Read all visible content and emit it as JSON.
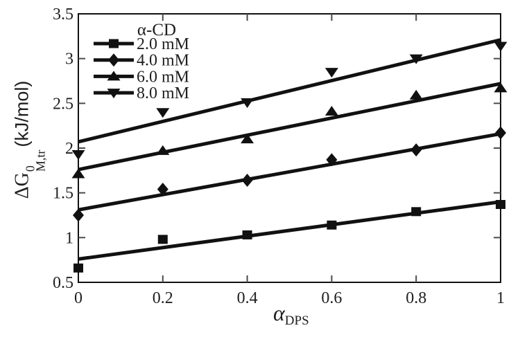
{
  "figure": {
    "background": "#ffffff",
    "ink_color": "#111111",
    "tick_color": "#4a4a4a",
    "text_color": "#1f1f1f"
  },
  "chart_data": {
    "type": "line",
    "title": "",
    "xlabel": "αDPS",
    "xlabel_parts": {
      "base": "α",
      "sub": "DPS"
    },
    "ylabel": "ΔG⁰M,tr (kJ/mol)",
    "ylabel_parts": {
      "base": "ΔG",
      "sup": "0",
      "sub": "M,tr",
      "units": "(kJ/mol)"
    },
    "xlim": [
      0,
      1
    ],
    "ylim": [
      0.5,
      3.5
    ],
    "xticks": [
      0,
      0.2,
      0.4,
      0.6,
      0.8,
      1
    ],
    "xtick_labels": [
      "0",
      "0.2",
      "0.4",
      "0.6",
      "0.8",
      "1"
    ],
    "yticks": [
      0.5,
      1,
      1.5,
      2,
      2.5,
      3,
      3.5
    ],
    "ytick_labels": [
      "0.5",
      "1",
      "1.5",
      "2",
      "2.5",
      "3",
      "3.5"
    ],
    "grid": false,
    "legend": {
      "title": "α-CD",
      "position": "upper-left"
    },
    "x": [
      0,
      0.2,
      0.4,
      0.6,
      0.8,
      1
    ],
    "series": [
      {
        "name": "2.0 mM",
        "marker": "square",
        "values": [
          0.66,
          0.98,
          1.03,
          1.14,
          1.29,
          1.37
        ],
        "fit": {
          "y0": 0.76,
          "y1": 1.4
        }
      },
      {
        "name": "4.0 mM",
        "marker": "diamond",
        "values": [
          1.25,
          1.54,
          1.64,
          1.87,
          1.98,
          2.17
        ],
        "fit": {
          "y0": 1.31,
          "y1": 2.16
        }
      },
      {
        "name": "6.0 mM",
        "marker": "triangle-up",
        "values": [
          1.71,
          1.97,
          2.1,
          2.41,
          2.59,
          2.67
        ],
        "fit": {
          "y0": 1.76,
          "y1": 2.72
        }
      },
      {
        "name": "8.0 mM",
        "marker": "triangle-down",
        "values": [
          1.93,
          2.4,
          2.51,
          2.85,
          3.0,
          3.14
        ],
        "fit": {
          "y0": 2.07,
          "y1": 3.21
        }
      }
    ]
  }
}
